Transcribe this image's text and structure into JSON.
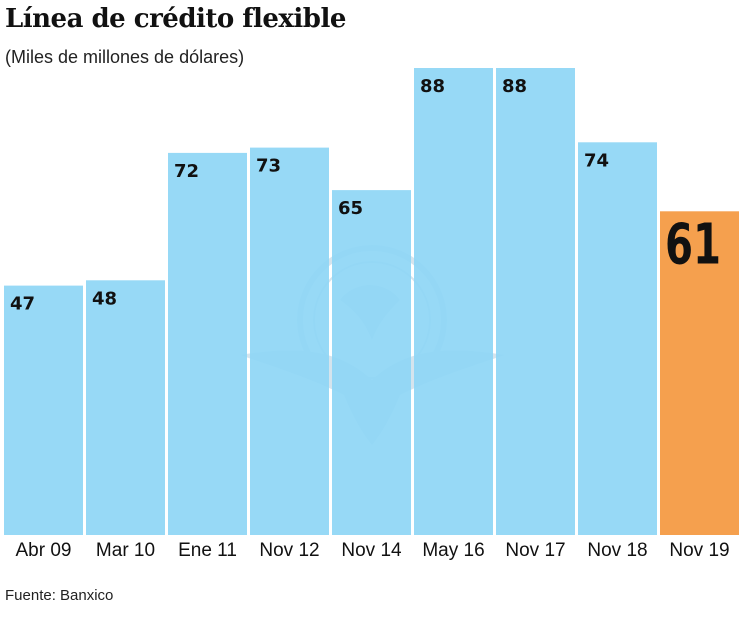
{
  "chart_data": {
    "type": "bar",
    "title": "Línea de crédito flexible",
    "subtitle": "(Miles de millones de dólares)",
    "categories": [
      "Abr 09",
      "Mar 10",
      "Ene 11",
      "Nov 12",
      "Nov 14",
      "May 16",
      "Nov 17",
      "Nov 18",
      "Nov 19"
    ],
    "values": [
      47,
      48,
      72,
      73,
      65,
      88,
      88,
      74,
      61
    ],
    "highlight_index": 8,
    "ylim": [
      0,
      88
    ],
    "xlabel": "",
    "ylabel": "",
    "grid": false,
    "source": "Fuente: Banxico",
    "colors": {
      "bar": "#8fd6f5",
      "highlight": "#f5a04e",
      "watermark": "#b3cfe0"
    }
  }
}
